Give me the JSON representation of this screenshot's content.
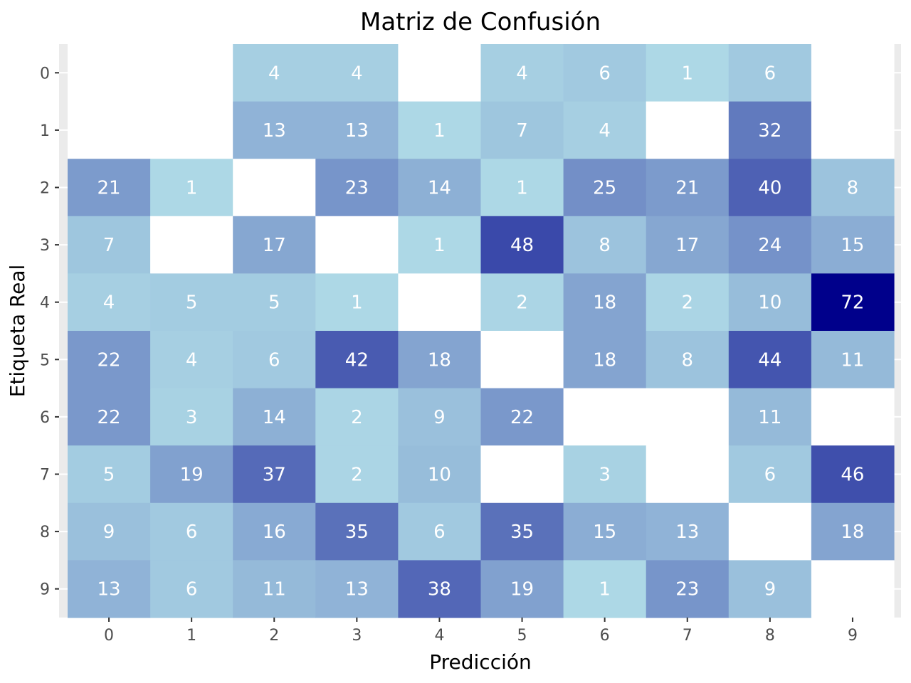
{
  "chart_data": {
    "type": "heatmap",
    "title": "Matriz de Confusión",
    "xlabel": "Predicción",
    "ylabel": "Etiqueta Real",
    "x_categories": [
      "0",
      "1",
      "2",
      "3",
      "4",
      "5",
      "6",
      "7",
      "8",
      "9"
    ],
    "y_categories": [
      "0",
      "1",
      "2",
      "3",
      "4",
      "5",
      "6",
      "7",
      "8",
      "9"
    ],
    "matrix": [
      [
        null,
        null,
        4,
        4,
        null,
        4,
        6,
        1,
        6,
        null
      ],
      [
        null,
        null,
        13,
        13,
        1,
        7,
        4,
        null,
        32,
        null
      ],
      [
        21,
        1,
        null,
        23,
        14,
        1,
        25,
        21,
        40,
        8
      ],
      [
        7,
        null,
        17,
        null,
        1,
        48,
        8,
        17,
        24,
        15
      ],
      [
        4,
        5,
        5,
        1,
        null,
        2,
        18,
        2,
        10,
        72
      ],
      [
        22,
        4,
        6,
        42,
        18,
        null,
        18,
        8,
        44,
        11
      ],
      [
        22,
        3,
        14,
        2,
        9,
        22,
        null,
        null,
        11,
        null
      ],
      [
        5,
        19,
        37,
        2,
        10,
        null,
        3,
        null,
        6,
        46
      ],
      [
        9,
        6,
        16,
        35,
        6,
        35,
        15,
        13,
        null,
        18
      ],
      [
        13,
        6,
        11,
        13,
        38,
        19,
        1,
        23,
        9,
        null
      ]
    ],
    "value_range": [
      1,
      72
    ],
    "colors": {
      "low": "#add8e6",
      "high": "#00008b",
      "empty": "#ffffff",
      "panel": "#ebebeb",
      "grid": "#ffffff"
    }
  }
}
